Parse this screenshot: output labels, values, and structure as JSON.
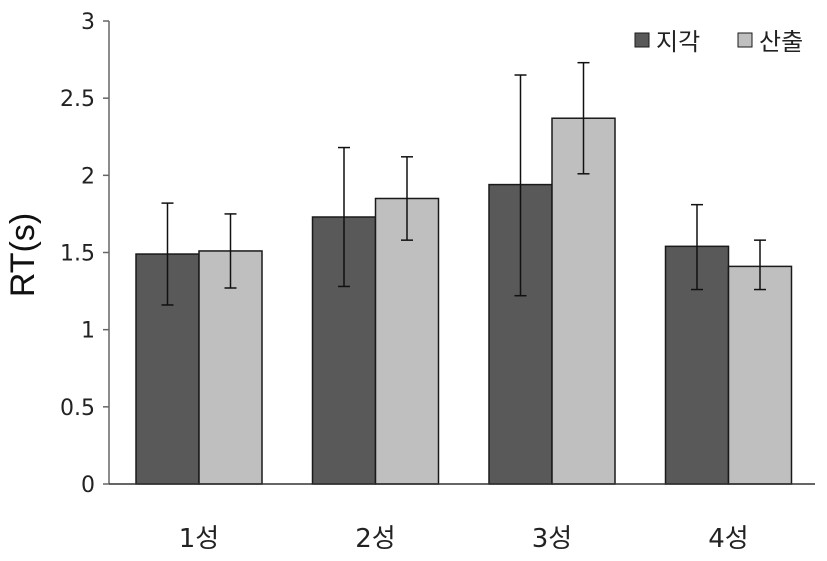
{
  "chart_data": {
    "type": "bar",
    "ylabel": "RT(s)",
    "xlabel": "",
    "ylim": [
      0,
      3
    ],
    "yticks": [
      "0",
      "0.5",
      "1",
      "1.5",
      "2",
      "2.5",
      "3"
    ],
    "grid": false,
    "legend_position": "top-right",
    "categories": [
      "1성",
      "2성",
      "3성",
      "4성"
    ],
    "series": [
      {
        "name": "지각",
        "color": "#595959",
        "values": [
          1.49,
          1.73,
          1.94,
          1.54
        ],
        "error_low": [
          1.16,
          1.28,
          1.22,
          1.26
        ],
        "error_high": [
          1.82,
          2.18,
          2.65,
          1.81
        ]
      },
      {
        "name": "산출",
        "color": "#bfbfbf",
        "values": [
          1.51,
          1.85,
          2.37,
          1.41
        ],
        "error_low": [
          1.27,
          1.58,
          2.01,
          1.26
        ],
        "error_high": [
          1.75,
          2.12,
          2.73,
          1.58
        ]
      }
    ]
  }
}
